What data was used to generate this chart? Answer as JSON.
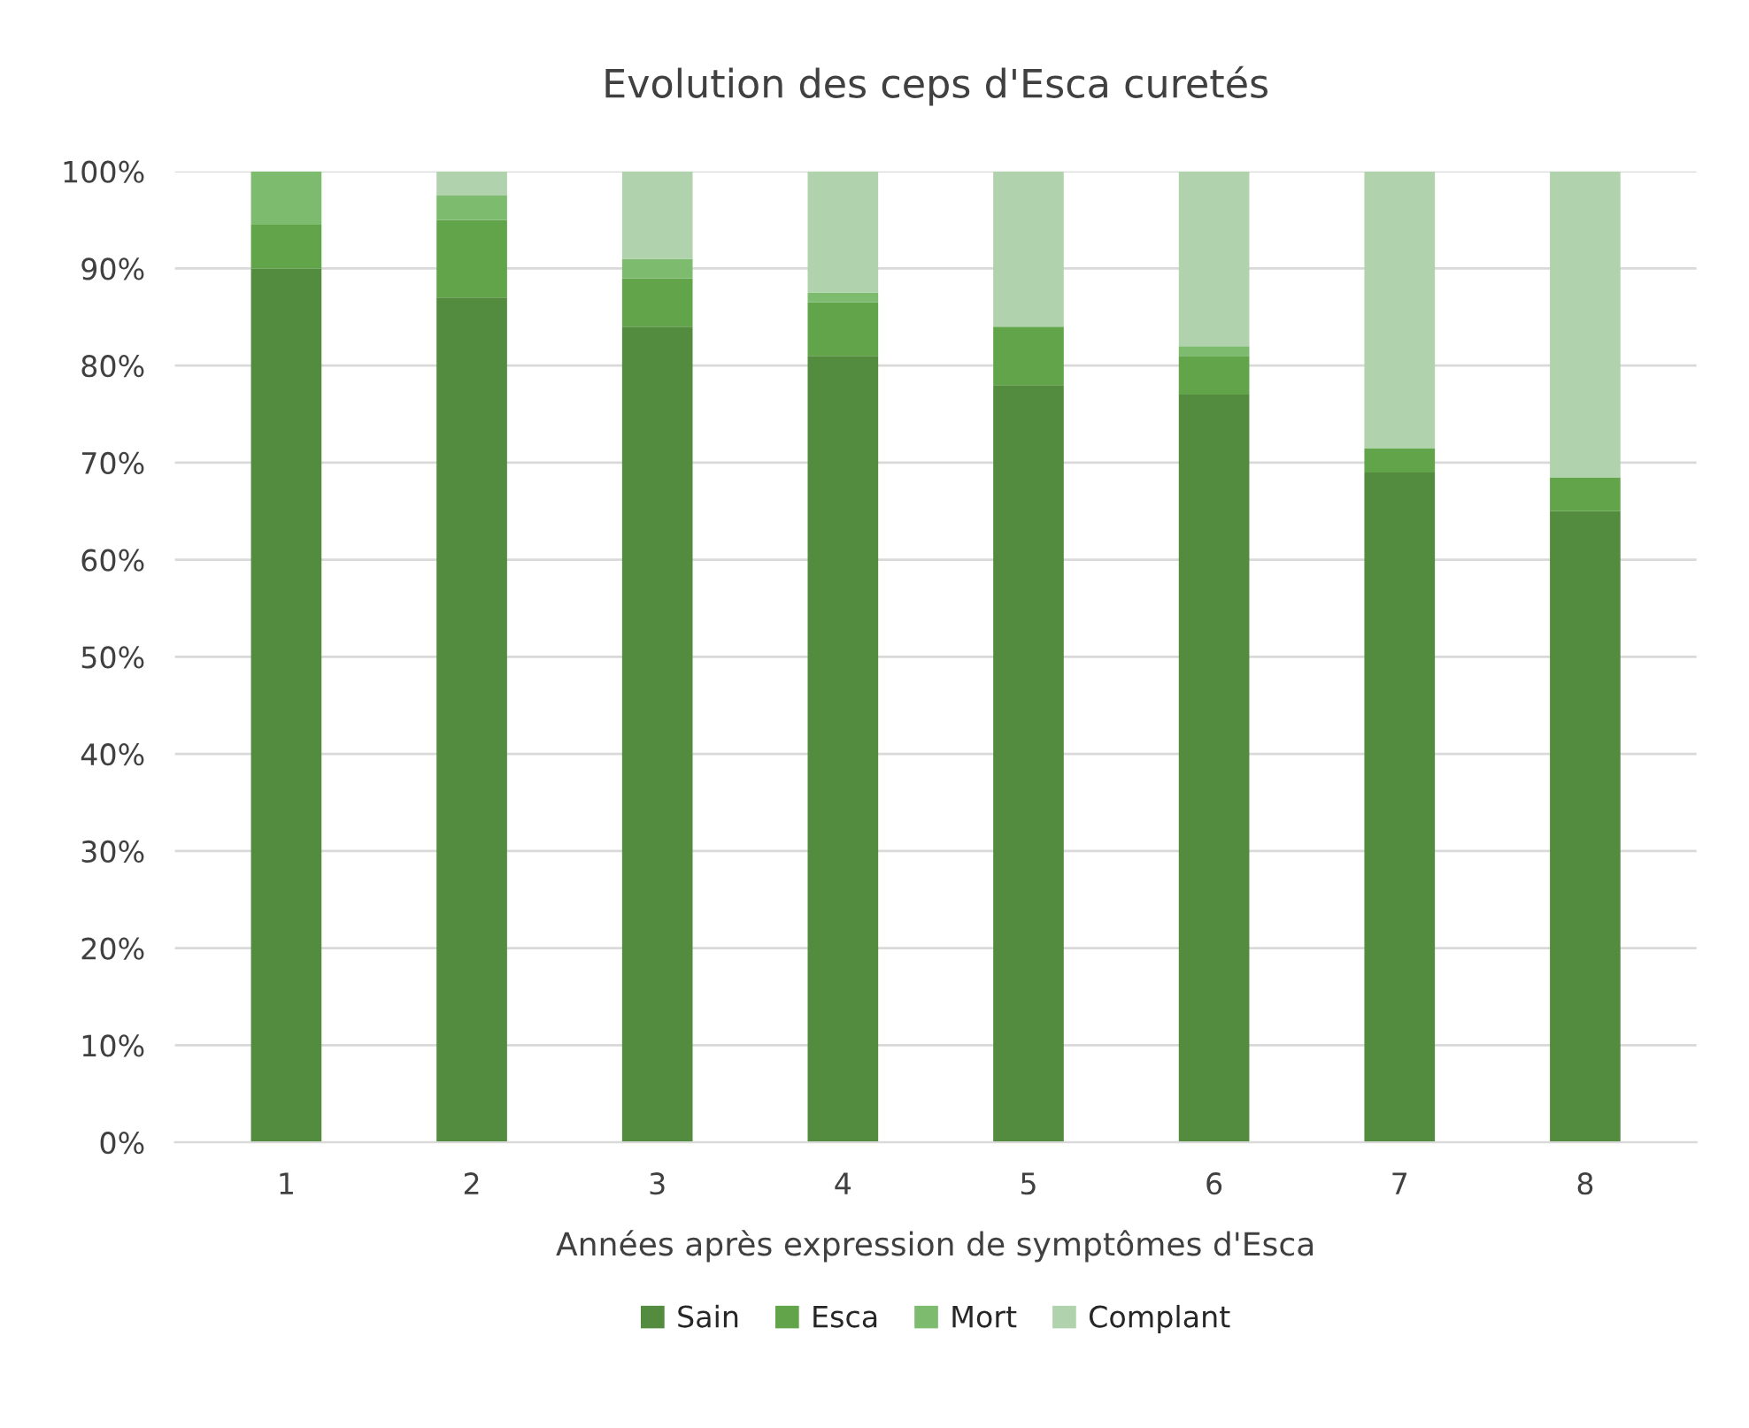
{
  "chart_data": {
    "type": "bar",
    "stacked": true,
    "title": "Evolution des ceps d'Esca curetés",
    "xlabel": "Années après expression de symptômes d'Esca",
    "categories": [
      "1",
      "2",
      "3",
      "4",
      "5",
      "6",
      "7",
      "8"
    ],
    "series": [
      {
        "name": "Sain",
        "color": "#538b3f",
        "values": [
          90,
          87,
          84,
          81,
          78,
          77,
          69,
          65
        ]
      },
      {
        "name": "Esca",
        "color": "#62a44a",
        "values": [
          4.5,
          8,
          5,
          5.5,
          6,
          4,
          2.5,
          3.5
        ]
      },
      {
        "name": "Mort",
        "color": "#7dbb6f",
        "values": [
          5.5,
          2.5,
          2,
          1,
          0,
          1,
          0,
          0
        ]
      },
      {
        "name": "Complant",
        "color": "#b0d3ad",
        "values": [
          0,
          2.5,
          9,
          12.5,
          16,
          18,
          28.5,
          31.5
        ]
      }
    ],
    "ylim": [
      0,
      100
    ],
    "yticks": [
      {
        "value": 0,
        "label": "0%"
      },
      {
        "value": 10,
        "label": "10%"
      },
      {
        "value": 20,
        "label": "20%"
      },
      {
        "value": 30,
        "label": "30%"
      },
      {
        "value": 40,
        "label": "40%"
      },
      {
        "value": 50,
        "label": "50%"
      },
      {
        "value": 60,
        "label": "60%"
      },
      {
        "value": 70,
        "label": "70%"
      },
      {
        "value": 80,
        "label": "80%"
      },
      {
        "value": 90,
        "label": "90%"
      },
      {
        "value": 100,
        "label": "100%"
      }
    ],
    "grid": "y",
    "legend": "bottom"
  }
}
